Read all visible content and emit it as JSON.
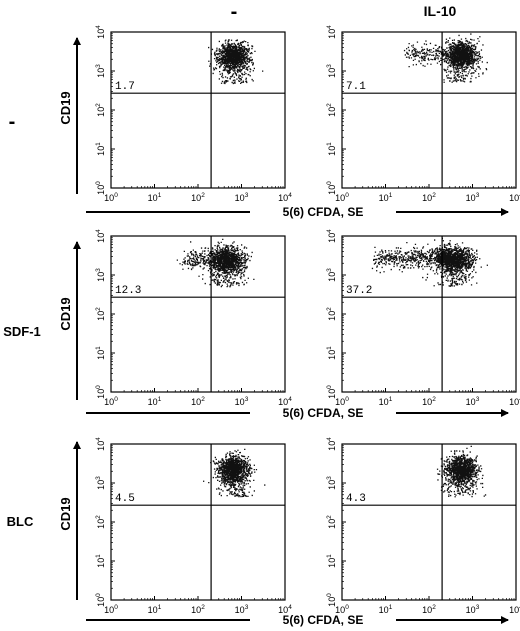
{
  "column_headers": [
    "-",
    "IL-10"
  ],
  "row_labels": [
    "-",
    "SDF-1",
    "BLC"
  ],
  "y_axis_label": "CD19",
  "x_axis_label": "5(6) CFDA, SE",
  "chart_data": {
    "type": "scatter",
    "title": "",
    "xlabel": "5(6) CFDA, SE",
    "ylabel": "CD19",
    "x_scale": "log",
    "y_scale": "log",
    "xlim": [
      1,
      10000
    ],
    "ylim": [
      1,
      10000
    ],
    "x_ticks": [
      "10^0",
      "10^1",
      "10^2",
      "10^3",
      "10^4"
    ],
    "y_ticks": [
      "10^0",
      "10^1",
      "10^2",
      "10^3",
      "10^4"
    ],
    "gate_x": 200,
    "gate_y": 270,
    "panels": [
      {
        "row": "-",
        "column": "-",
        "upper_left_percent": "1.7",
        "cluster_center": [
          650,
          2800
        ],
        "spread": "narrow"
      },
      {
        "row": "-",
        "column": "IL-10",
        "upper_left_percent": "7.1",
        "cluster_center": [
          550,
          3000
        ],
        "spread": "wide-left"
      },
      {
        "row": "SDF-1",
        "column": "-",
        "upper_left_percent": "12.3",
        "cluster_center": [
          450,
          2900
        ],
        "spread": "left"
      },
      {
        "row": "SDF-1",
        "column": "IL-10",
        "upper_left_percent": "37.2",
        "cluster_center": [
          350,
          3000
        ],
        "spread": "very-wide-left"
      },
      {
        "row": "BLC",
        "column": "-",
        "upper_left_percent": "4.5",
        "cluster_center": [
          650,
          2600
        ],
        "spread": "narrow"
      },
      {
        "row": "BLC",
        "column": "IL-10",
        "upper_left_percent": "4.3",
        "cluster_center": [
          550,
          2600
        ],
        "spread": "narrow"
      }
    ]
  }
}
